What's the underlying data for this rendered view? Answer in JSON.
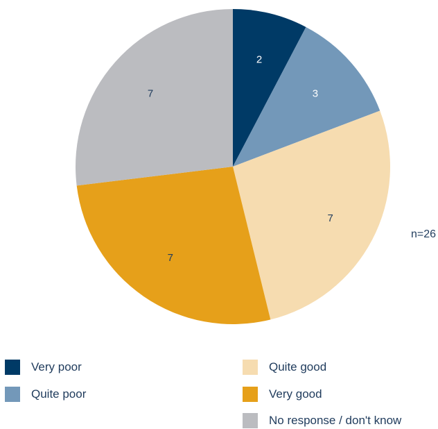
{
  "chart_data": {
    "type": "pie",
    "title": "",
    "note": "n=26",
    "series": [
      {
        "label": "Very poor",
        "value": 2,
        "color": "#003a66"
      },
      {
        "label": "Quite poor",
        "value": 3,
        "color": "#7398b9"
      },
      {
        "label": "Quite good",
        "value": 7,
        "color": "#f6dcb0"
      },
      {
        "label": "Very good",
        "value": 7,
        "color": "#e6a01a"
      },
      {
        "label": "No response / don't know",
        "value": 7,
        "color": "#bbbcc0"
      }
    ],
    "slice_order": "clockwise from 12 o'clock",
    "legend_placement": "bottom"
  }
}
